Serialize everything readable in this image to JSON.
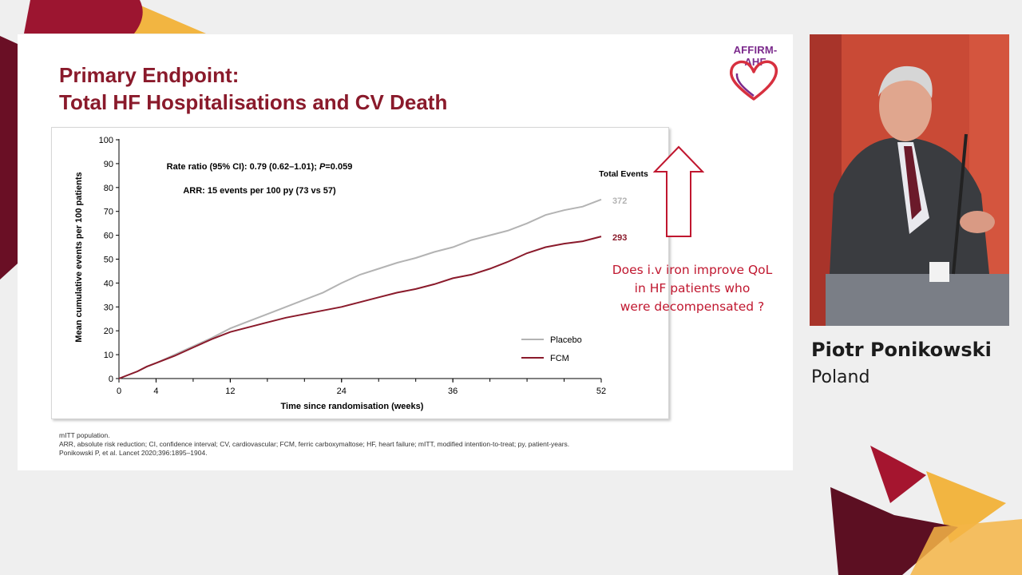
{
  "slide": {
    "title_line1": "Primary Endpoint:",
    "title_line2": "Total HF Hospitalisations and CV Death",
    "logo_text": "AFFIRM-AHF",
    "footnotes": [
      "mITT population.",
      "ARR, absolute risk reduction; CI, confidence interval; CV, cardiovascular; FCM, ferric carboxymaltose; HF, heart failure; mITT, modified intention-to-treat; py, patient-years.",
      "Ponikowski P, et al. Lancet 2020;396:1895–1904."
    ],
    "callout_lines": [
      "Does i.v iron improve QoL",
      "in HF patients who",
      "were decompensated ?"
    ]
  },
  "speaker": {
    "name": "Piotr Ponikowski",
    "country": "Poland"
  },
  "colors": {
    "title": "#8a1a2b",
    "fcm": "#8a1a2b",
    "placebo": "#b3b3b3",
    "callout": "#c0172f",
    "accent_yellow": "#f2b541",
    "accent_dark": "#5c0f22"
  },
  "chart_data": {
    "type": "line",
    "xlabel": "Time since randomisation (weeks)",
    "ylabel": "Mean cumulative events per 100 patients",
    "xlim": [
      0,
      52
    ],
    "ylim": [
      0,
      100
    ],
    "xticks": [
      0,
      4,
      12,
      24,
      36,
      52
    ],
    "yticks": [
      0,
      10,
      20,
      30,
      40,
      50,
      60,
      70,
      80,
      90,
      100
    ],
    "annotation_line1_prefix": "Rate ratio (95% CI): 0.79 (0.62–1.01); ",
    "annotation_line1_italic": "P",
    "annotation_line1_suffix": "=0.059",
    "annotation_line2": "ARR: 15 events per 100 py (73 vs 57)",
    "total_events_label": "Total Events",
    "legend_position": "bottom-right",
    "series": [
      {
        "name": "Placebo",
        "total_events": "372",
        "x": [
          0,
          1,
          2,
          3,
          4,
          6,
          8,
          10,
          12,
          14,
          16,
          18,
          20,
          22,
          24,
          26,
          28,
          30,
          32,
          34,
          36,
          38,
          40,
          42,
          44,
          46,
          48,
          50,
          52
        ],
        "y": [
          0,
          1.5,
          3,
          5,
          6.5,
          10,
          13.5,
          17,
          21,
          24,
          27,
          30,
          33,
          36,
          40,
          43.5,
          46,
          48.5,
          50.5,
          53,
          55,
          58,
          60,
          62,
          65,
          68.5,
          70.5,
          72,
          75
        ]
      },
      {
        "name": "FCM",
        "total_events": "293",
        "x": [
          0,
          1,
          2,
          3,
          4,
          6,
          8,
          10,
          12,
          14,
          16,
          18,
          20,
          22,
          24,
          26,
          28,
          30,
          32,
          34,
          36,
          38,
          40,
          42,
          44,
          46,
          48,
          50,
          52
        ],
        "y": [
          0,
          1.5,
          3,
          5,
          6.5,
          9.5,
          13,
          16.5,
          19.5,
          21.5,
          23.5,
          25.5,
          27,
          28.5,
          30,
          32,
          34,
          36,
          37.5,
          39.5,
          42,
          43.5,
          46,
          49,
          52.5,
          55,
          56.5,
          57.5,
          59.5
        ]
      }
    ]
  }
}
